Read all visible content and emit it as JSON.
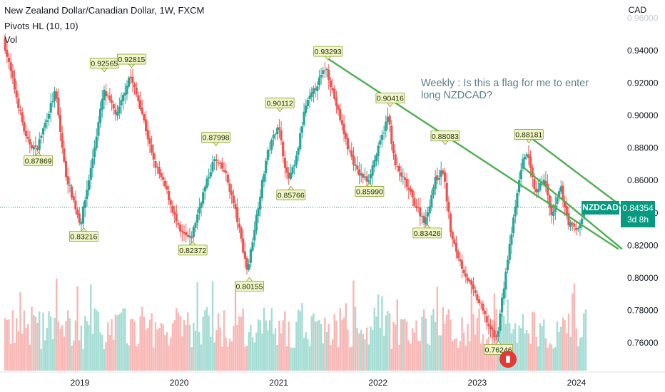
{
  "header": {
    "title": "New Zealand Dollar/Canadian Dollar, 1W, FXCM",
    "indicator": "Pivots HL (10, 10)",
    "volume_label": "Vol",
    "currency": "CAD"
  },
  "annotation_text": "Weekly : Is this a flag for me to enter long NZDCAD?",
  "price_marker": {
    "symbol": "NZDCAD",
    "price": "0.84354",
    "countdown": "3d 8h"
  },
  "flag_icon": "canada-flag-icon",
  "colors": {
    "up": "#26a69a",
    "down": "#ef5350",
    "trend": "#4caf50",
    "pivot_bg": "#f0f6c8",
    "accent": "#089981"
  },
  "chart_data": {
    "type": "candlestick",
    "title": "New Zealand Dollar/Canadian Dollar, 1W, FXCM",
    "x_ticks": [
      "2019",
      "2020",
      "2021",
      "2022",
      "2023",
      "2024"
    ],
    "y_ticks": [
      "0.94000",
      "0.92000",
      "0.90000",
      "0.88000",
      "0.86000",
      "0.84000",
      "0.82000",
      "0.80000",
      "0.78000",
      "0.76000"
    ],
    "ylim": [
      0.745,
      0.965
    ],
    "last_price": 0.84354,
    "series_anchors": [
      [
        "2018-04-01",
        0.947
      ],
      [
        "2018-05-15",
        0.915
      ],
      [
        "2018-06-25",
        0.885
      ],
      [
        "2018-08-01",
        0.8787
      ],
      [
        "2018-10-10",
        0.915
      ],
      [
        "2018-11-15",
        0.865
      ],
      [
        "2019-01-10",
        0.833
      ],
      [
        "2019-02-20",
        0.8697
      ],
      [
        "2019-04-05",
        0.915
      ],
      [
        "2019-05-25",
        0.9
      ],
      [
        "2019-07-10",
        0.925
      ],
      [
        "2019-08-20",
        0.905
      ],
      [
        "2019-10-05",
        0.872
      ],
      [
        "2019-11-20",
        0.855
      ],
      [
        "2020-01-10",
        0.828
      ],
      [
        "2020-02-20",
        0.8237
      ],
      [
        "2020-04-01",
        0.85
      ],
      [
        "2020-05-15",
        0.873
      ],
      [
        "2020-06-25",
        0.865
      ],
      [
        "2020-08-01",
        0.842
      ],
      [
        "2020-09-15",
        0.804
      ],
      [
        "2020-10-20",
        0.84
      ],
      [
        "2020-11-25",
        0.875
      ],
      [
        "2021-01-05",
        0.895
      ],
      [
        "2021-02-10",
        0.86
      ],
      [
        "2021-03-10",
        0.87
      ],
      [
        "2021-04-15",
        0.905
      ],
      [
        "2021-05-25",
        0.918
      ],
      [
        "2021-07-01",
        0.93
      ],
      [
        "2021-08-10",
        0.905
      ],
      [
        "2021-09-20",
        0.88
      ],
      [
        "2021-10-25",
        0.865
      ],
      [
        "2021-12-01",
        0.8599
      ],
      [
        "2022-01-10",
        0.88
      ],
      [
        "2022-02-15",
        0.9
      ],
      [
        "2022-03-10",
        0.87
      ],
      [
        "2022-04-20",
        0.858
      ],
      [
        "2022-05-25",
        0.845
      ],
      [
        "2022-07-01",
        0.8343
      ],
      [
        "2022-08-05",
        0.86
      ],
      [
        "2022-09-05",
        0.866
      ],
      [
        "2022-10-05",
        0.825
      ],
      [
        "2022-11-10",
        0.808
      ],
      [
        "2022-12-15",
        0.795
      ],
      [
        "2023-01-20",
        0.783
      ],
      [
        "2023-02-20",
        0.77
      ],
      [
        "2023-03-20",
        0.762
      ],
      [
        "2023-04-20",
        0.8
      ],
      [
        "2023-05-25",
        0.84
      ],
      [
        "2023-06-20",
        0.87
      ],
      [
        "2023-07-10",
        0.878
      ],
      [
        "2023-08-10",
        0.85
      ],
      [
        "2023-09-10",
        0.862
      ],
      [
        "2023-10-10",
        0.836
      ],
      [
        "2023-11-10",
        0.856
      ],
      [
        "2023-12-10",
        0.834
      ],
      [
        "2024-01-10",
        0.829
      ],
      [
        "2024-02-10",
        0.8435
      ]
    ],
    "pivots": [
      {
        "label": "0.87869",
        "date": "2018-08-01",
        "price": 0.87869,
        "kind": "low"
      },
      {
        "label": "0.92565",
        "date": "2019-04-01",
        "price": 0.92565,
        "kind": "high"
      },
      {
        "label": "0.92815",
        "date": "2019-07-10",
        "price": 0.92815,
        "kind": "high"
      },
      {
        "label": "0.83216",
        "date": "2019-01-15",
        "price": 0.83216,
        "kind": "low"
      },
      {
        "label": "0.87998",
        "date": "2020-05-15",
        "price": 0.87998,
        "kind": "high"
      },
      {
        "label": "0.82372",
        "date": "2020-02-20",
        "price": 0.82372,
        "kind": "low"
      },
      {
        "label": "0.80155",
        "date": "2020-09-15",
        "price": 0.80155,
        "kind": "low"
      },
      {
        "label": "0.90112",
        "date": "2021-01-05",
        "price": 0.90112,
        "kind": "high"
      },
      {
        "label": "0.85766",
        "date": "2021-02-15",
        "price": 0.85766,
        "kind": "low"
      },
      {
        "label": "0.93293",
        "date": "2021-07-01",
        "price": 0.93293,
        "kind": "high"
      },
      {
        "label": "0.90416",
        "date": "2022-02-15",
        "price": 0.90416,
        "kind": "high"
      },
      {
        "label": "0.85990",
        "date": "2021-12-01",
        "price": 0.8599,
        "kind": "low"
      },
      {
        "label": "0.88083",
        "date": "2022-09-05",
        "price": 0.88083,
        "kind": "high"
      },
      {
        "label": "0.83426",
        "date": "2022-07-01",
        "price": 0.83426,
        "kind": "low"
      },
      {
        "label": "0.76246",
        "date": "2023-03-20",
        "price": 0.76246,
        "kind": "low"
      },
      {
        "label": "0.88181",
        "date": "2023-07-10",
        "price": 0.88181,
        "kind": "high"
      }
    ],
    "trendlines": [
      {
        "start": [
          "2021-07-01",
          0.935
        ],
        "end": [
          "2024-06-01",
          0.818
        ]
      },
      {
        "start": [
          "2023-06-10",
          0.891
        ],
        "end": [
          "2024-07-25",
          0.839
        ]
      },
      {
        "start": [
          "2023-06-20",
          0.868
        ],
        "end": [
          "2024-06-15",
          0.818
        ]
      }
    ],
    "grid": false
  }
}
